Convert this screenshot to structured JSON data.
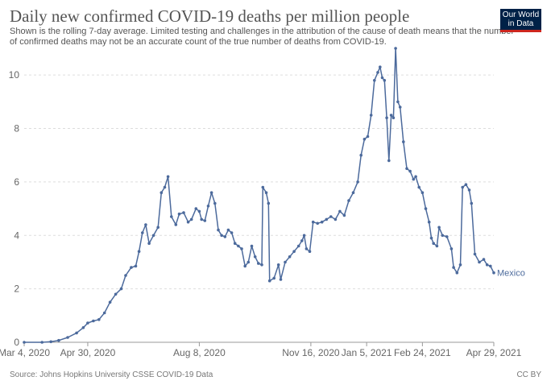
{
  "header": {
    "title": "Daily new confirmed COVID-19 deaths per million people",
    "subtitle_line1": "Shown is the rolling 7-day average. Limited testing and challenges in the attribution of the cause of death means that the number",
    "subtitle_line2": "of confirmed deaths may not be an accurate count of the true number of deaths from COVID-19.",
    "logo_line1": "Our World",
    "logo_line2": "in Data"
  },
  "footer": {
    "source": "Source: Johns Hopkins University CSSE COVID-19 Data",
    "license": "CC BY"
  },
  "colors": {
    "series": "#4c6a9c",
    "grid": "#dddddd",
    "axis_text": "#666666",
    "logo_bg": "#002147",
    "logo_accent": "#ce261e"
  },
  "chart_data": {
    "type": "line",
    "title": "Daily new confirmed COVID-19 deaths per million people",
    "x_type": "date",
    "x_range": [
      "2020-03-04",
      "2021-04-29"
    ],
    "ylim": [
      0,
      11
    ],
    "y_ticks": [
      0,
      2,
      4,
      6,
      8,
      10
    ],
    "x_ticks": [
      {
        "date": "2020-03-04",
        "label": "Mar 4, 2020"
      },
      {
        "date": "2020-04-30",
        "label": "Apr 30, 2020"
      },
      {
        "date": "2020-08-08",
        "label": "Aug 8, 2020"
      },
      {
        "date": "2020-11-16",
        "label": "Nov 16, 2020"
      },
      {
        "date": "2021-01-05",
        "label": "Jan 5, 2021"
      },
      {
        "date": "2021-02-24",
        "label": "Feb 24, 2021"
      },
      {
        "date": "2021-04-29",
        "label": "Apr 29, 2021"
      }
    ],
    "grid": "horizontal",
    "end_label": "Mexico",
    "series": [
      {
        "name": "Mexico",
        "points": [
          [
            "2020-03-04",
            0
          ],
          [
            "2020-03-20",
            0.0
          ],
          [
            "2020-03-28",
            0.02
          ],
          [
            "2020-04-04",
            0.07
          ],
          [
            "2020-04-12",
            0.18
          ],
          [
            "2020-04-20",
            0.35
          ],
          [
            "2020-04-26",
            0.55
          ],
          [
            "2020-04-30",
            0.72
          ],
          [
            "2020-05-05",
            0.8
          ],
          [
            "2020-05-10",
            0.85
          ],
          [
            "2020-05-15",
            1.1
          ],
          [
            "2020-05-20",
            1.5
          ],
          [
            "2020-05-25",
            1.8
          ],
          [
            "2020-05-30",
            2.0
          ],
          [
            "2020-06-03",
            2.5
          ],
          [
            "2020-06-08",
            2.8
          ],
          [
            "2020-06-12",
            2.85
          ],
          [
            "2020-06-15",
            3.4
          ],
          [
            "2020-06-18",
            4.1
          ],
          [
            "2020-06-21",
            4.4
          ],
          [
            "2020-06-24",
            3.7
          ],
          [
            "2020-06-28",
            4.0
          ],
          [
            "2020-07-02",
            4.3
          ],
          [
            "2020-07-05",
            5.6
          ],
          [
            "2020-07-08",
            5.8
          ],
          [
            "2020-07-11",
            6.2
          ],
          [
            "2020-07-14",
            4.7
          ],
          [
            "2020-07-18",
            4.4
          ],
          [
            "2020-07-21",
            4.8
          ],
          [
            "2020-07-25",
            4.85
          ],
          [
            "2020-07-29",
            4.5
          ],
          [
            "2020-08-01",
            4.6
          ],
          [
            "2020-08-05",
            5.0
          ],
          [
            "2020-08-08",
            4.9
          ],
          [
            "2020-08-10",
            4.6
          ],
          [
            "2020-08-13",
            4.55
          ],
          [
            "2020-08-16",
            5.1
          ],
          [
            "2020-08-19",
            5.6
          ],
          [
            "2020-08-22",
            5.2
          ],
          [
            "2020-08-25",
            4.2
          ],
          [
            "2020-08-28",
            4.0
          ],
          [
            "2020-08-31",
            3.95
          ],
          [
            "2020-09-03",
            4.2
          ],
          [
            "2020-09-06",
            4.1
          ],
          [
            "2020-09-09",
            3.7
          ],
          [
            "2020-09-12",
            3.6
          ],
          [
            "2020-09-15",
            3.5
          ],
          [
            "2020-09-18",
            2.85
          ],
          [
            "2020-09-21",
            3.0
          ],
          [
            "2020-09-24",
            3.6
          ],
          [
            "2020-09-27",
            3.2
          ],
          [
            "2020-09-30",
            2.95
          ],
          [
            "2020-10-03",
            2.9
          ],
          [
            "2020-10-04",
            5.8
          ],
          [
            "2020-10-07",
            5.6
          ],
          [
            "2020-10-09",
            5.2
          ],
          [
            "2020-10-10",
            2.3
          ],
          [
            "2020-10-14",
            2.4
          ],
          [
            "2020-10-18",
            2.9
          ],
          [
            "2020-10-20",
            2.35
          ],
          [
            "2020-10-24",
            3.0
          ],
          [
            "2020-10-28",
            3.2
          ],
          [
            "2020-11-01",
            3.4
          ],
          [
            "2020-11-05",
            3.6
          ],
          [
            "2020-11-08",
            3.8
          ],
          [
            "2020-11-10",
            4.0
          ],
          [
            "2020-11-12",
            3.5
          ],
          [
            "2020-11-15",
            3.4
          ],
          [
            "2020-11-18",
            4.5
          ],
          [
            "2020-11-22",
            4.45
          ],
          [
            "2020-11-26",
            4.5
          ],
          [
            "2020-11-30",
            4.6
          ],
          [
            "2020-12-04",
            4.7
          ],
          [
            "2020-12-08",
            4.6
          ],
          [
            "2020-12-12",
            4.9
          ],
          [
            "2020-12-16",
            4.75
          ],
          [
            "2020-12-20",
            5.3
          ],
          [
            "2020-12-24",
            5.6
          ],
          [
            "2020-12-28",
            6.0
          ],
          [
            "2020-12-31",
            7.0
          ],
          [
            "2021-01-03",
            7.6
          ],
          [
            "2021-01-06",
            7.7
          ],
          [
            "2021-01-09",
            8.5
          ],
          [
            "2021-01-12",
            9.8
          ],
          [
            "2021-01-15",
            10.1
          ],
          [
            "2021-01-17",
            10.3
          ],
          [
            "2021-01-19",
            9.9
          ],
          [
            "2021-01-21",
            9.8
          ],
          [
            "2021-01-23",
            8.4
          ],
          [
            "2021-01-25",
            6.8
          ],
          [
            "2021-01-27",
            8.5
          ],
          [
            "2021-01-29",
            8.4
          ],
          [
            "2021-01-31",
            11.0
          ],
          [
            "2021-02-02",
            9.0
          ],
          [
            "2021-02-04",
            8.8
          ],
          [
            "2021-02-07",
            7.5
          ],
          [
            "2021-02-10",
            6.5
          ],
          [
            "2021-02-13",
            6.4
          ],
          [
            "2021-02-16",
            6.1
          ],
          [
            "2021-02-18",
            6.2
          ],
          [
            "2021-02-21",
            5.8
          ],
          [
            "2021-02-24",
            5.6
          ],
          [
            "2021-02-27",
            5.0
          ],
          [
            "2021-03-02",
            4.5
          ],
          [
            "2021-03-04",
            3.9
          ],
          [
            "2021-03-06",
            3.7
          ],
          [
            "2021-03-09",
            3.6
          ],
          [
            "2021-03-11",
            4.3
          ],
          [
            "2021-03-14",
            4.0
          ],
          [
            "2021-03-18",
            3.95
          ],
          [
            "2021-03-22",
            3.5
          ],
          [
            "2021-03-24",
            2.8
          ],
          [
            "2021-03-27",
            2.6
          ],
          [
            "2021-03-30",
            2.9
          ],
          [
            "2021-04-01",
            5.8
          ],
          [
            "2021-04-04",
            5.9
          ],
          [
            "2021-04-07",
            5.7
          ],
          [
            "2021-04-09",
            5.2
          ],
          [
            "2021-04-12",
            3.3
          ],
          [
            "2021-04-16",
            3.0
          ],
          [
            "2021-04-20",
            3.1
          ],
          [
            "2021-04-23",
            2.9
          ],
          [
            "2021-04-26",
            2.85
          ],
          [
            "2021-04-29",
            2.6
          ]
        ]
      }
    ]
  }
}
